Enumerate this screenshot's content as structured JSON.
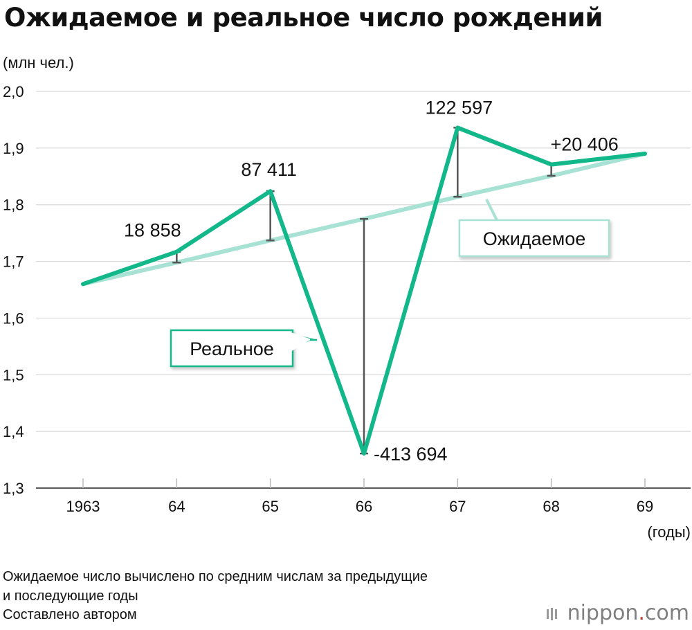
{
  "header": {
    "title": "Ожидаемое и реальное число рождений",
    "y_unit": "(млн чел.)",
    "x_unit": "(годы)"
  },
  "footer": {
    "note_line1": "Ожидаемое число вычислено по средним числам за предыдущие",
    "note_line2": "и последующие годы",
    "source": "Составлено автором"
  },
  "logo": {
    "brand": "nippon",
    "dot": ".",
    "tld": "com"
  },
  "colors": {
    "actual": "#12b88a",
    "expected": "#a8e2d4",
    "gap": "#555555",
    "grid": "#d9d9d9"
  },
  "chart_data": {
    "type": "line",
    "title": "Ожидаемое и реальное число рождений",
    "ylabel": "(млн чел.)",
    "xlabel": "(годы)",
    "categories": [
      "1963",
      "64",
      "65",
      "66",
      "67",
      "68",
      "69"
    ],
    "ylim": [
      1.3,
      2.0
    ],
    "yticks": [
      "1,3",
      "1,4",
      "1,5",
      "1,6",
      "1,7",
      "1,8",
      "1,9",
      "2,0"
    ],
    "ytick_values": [
      1.3,
      1.4,
      1.5,
      1.6,
      1.7,
      1.8,
      1.9,
      2.0
    ],
    "grid": true,
    "series": [
      {
        "name": "Реальное",
        "values": [
          1.66,
          1.717,
          1.824,
          1.361,
          1.936,
          1.871,
          1.89
        ]
      },
      {
        "name": "Ожидаемое",
        "values": [
          1.66,
          1.698,
          1.737,
          1.775,
          1.814,
          1.851,
          1.89
        ]
      }
    ],
    "annotations": [
      {
        "index": 1,
        "text": "18 858"
      },
      {
        "index": 2,
        "text": "87 411"
      },
      {
        "index": 3,
        "text": "-413 694"
      },
      {
        "index": 4,
        "text": "122 597"
      },
      {
        "index": 5,
        "text": "+20 406"
      }
    ]
  }
}
